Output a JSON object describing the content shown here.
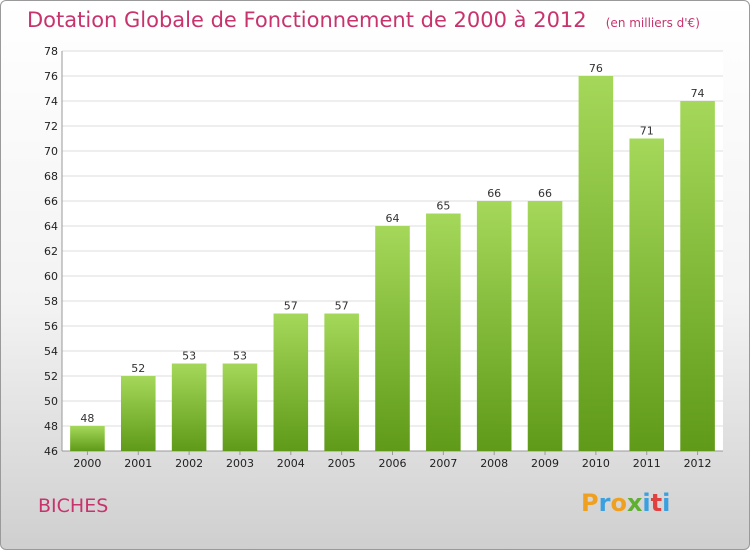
{
  "chart_data": {
    "type": "bar",
    "title": "Dotation Globale de Fonctionnement de 2000 à 2012",
    "unit": "(en milliers d'€)",
    "categories": [
      "2000",
      "2001",
      "2002",
      "2003",
      "2004",
      "2005",
      "2006",
      "2007",
      "2008",
      "2009",
      "2010",
      "2011",
      "2012"
    ],
    "values": [
      48,
      52,
      53,
      53,
      57,
      57,
      64,
      65,
      66,
      66,
      76,
      71,
      74
    ],
    "ylim": [
      46,
      78
    ],
    "yticks": [
      46,
      48,
      50,
      52,
      54,
      56,
      58,
      60,
      62,
      64,
      66,
      68,
      70,
      72,
      74,
      76,
      78
    ],
    "grid": true,
    "colors": {
      "bar_top": "#a5d85a",
      "bar_bottom": "#5f9a18",
      "grid": "#dddddd"
    }
  },
  "commune": "BICHES",
  "logo": {
    "letters": [
      "P",
      "r",
      "o",
      "x",
      "i",
      "t",
      "i"
    ],
    "colors": [
      "#f0a020",
      "#3aa0e0",
      "#f0a020",
      "#5fb030",
      "#3aa0e0",
      "#e04040",
      "#3aa0e0"
    ]
  }
}
